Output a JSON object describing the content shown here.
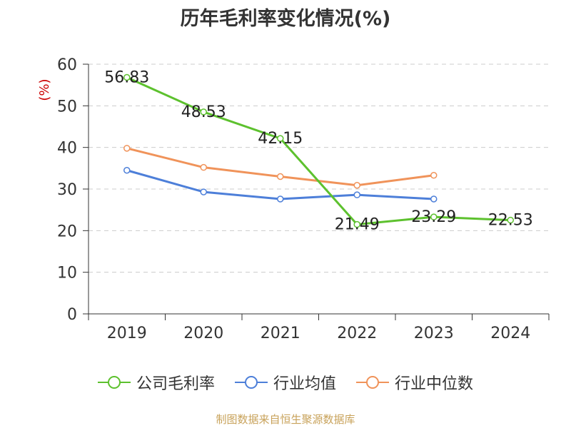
{
  "chart_data": {
    "type": "line",
    "title": "历年毛利率变化情况(%)",
    "ylabel": "(%)",
    "categories": [
      "2019",
      "2020",
      "2021",
      "2022",
      "2023",
      "2024"
    ],
    "ylim": [
      0,
      60
    ],
    "yticks": [
      0,
      10,
      20,
      30,
      40,
      50,
      60
    ],
    "grid": true,
    "legend_position": "bottom",
    "series": [
      {
        "name": "公司毛利率",
        "color": "#5dc12e",
        "values": [
          56.83,
          48.53,
          42.15,
          21.49,
          23.29,
          22.53
        ],
        "labels": [
          "56.83",
          "48.53",
          "42.15",
          "21.49",
          "23.29",
          "22.53"
        ]
      },
      {
        "name": "行业均值",
        "color": "#4d7fd9",
        "values": [
          34.5,
          29.3,
          27.6,
          28.6,
          27.6,
          null
        ]
      },
      {
        "name": "行业中位数",
        "color": "#f0935a",
        "values": [
          39.8,
          35.2,
          33.0,
          30.9,
          33.3,
          null
        ]
      }
    ]
  },
  "source": "制图数据来自恒生聚源数据库"
}
